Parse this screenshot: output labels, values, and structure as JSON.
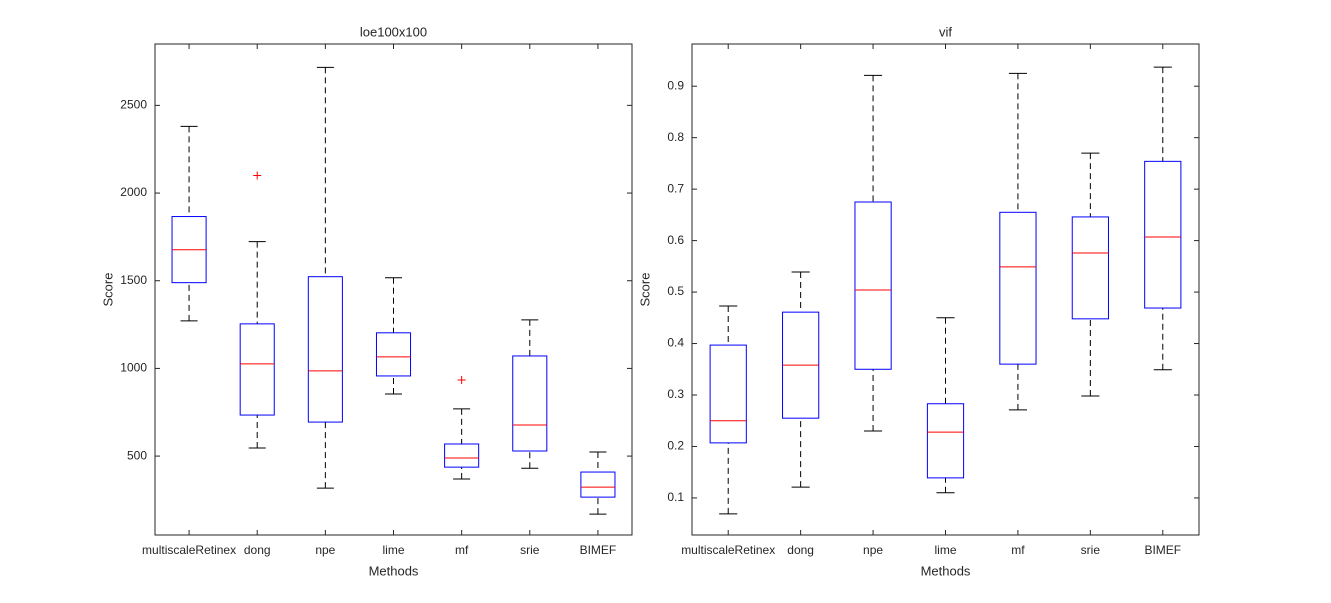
{
  "chart_data": [
    {
      "type": "box",
      "title": "loe100x100",
      "xlabel": "Methods",
      "ylabel": "Score",
      "categories": [
        "multiscaleRetinex",
        "dong",
        "npe",
        "lime",
        "mf",
        "srie",
        "BIMEF"
      ],
      "boxes": [
        {
          "whislo": 1271,
          "q1": 1489,
          "median": 1677,
          "q3": 1866,
          "whishi": 2380
        },
        {
          "whislo": 546,
          "q1": 734,
          "median": 1026,
          "q3": 1254,
          "whishi": 1723,
          "fliers": [
            2100
          ]
        },
        {
          "whislo": 317,
          "q1": 694,
          "median": 986,
          "q3": 1523,
          "whishi": 2717
        },
        {
          "whislo": 854,
          "q1": 957,
          "median": 1066,
          "q3": 1203,
          "whishi": 1517
        },
        {
          "whislo": 369,
          "q1": 437,
          "median": 489,
          "q3": 569,
          "whishi": 769,
          "fliers": [
            934
          ]
        },
        {
          "whislo": 431,
          "q1": 529,
          "median": 677,
          "q3": 1071,
          "whishi": 1277
        },
        {
          "whislo": 169,
          "q1": 266,
          "median": 323,
          "q3": 409,
          "whishi": 523
        }
      ],
      "ylim": [
        50,
        2850
      ],
      "yticks": [
        500,
        1000,
        1500,
        2000,
        2500
      ],
      "box_color": "#0000ff",
      "median_color": "#ff0000",
      "whisker_color": "#000000",
      "flier_color": "#ff0000"
    },
    {
      "type": "box",
      "title": "vif",
      "xlabel": "Methods",
      "ylabel": "Score",
      "categories": [
        "multiscaleRetinex",
        "dong",
        "npe",
        "lime",
        "mf",
        "srie",
        "BIMEF"
      ],
      "boxes": [
        {
          "whislo": 0.069,
          "q1": 0.207,
          "median": 0.25,
          "q3": 0.397,
          "whishi": 0.473
        },
        {
          "whislo": 0.121,
          "q1": 0.255,
          "median": 0.358,
          "q3": 0.461,
          "whishi": 0.539
        },
        {
          "whislo": 0.23,
          "q1": 0.35,
          "median": 0.504,
          "q3": 0.675,
          "whishi": 0.921
        },
        {
          "whislo": 0.11,
          "q1": 0.139,
          "median": 0.228,
          "q3": 0.283,
          "whishi": 0.45
        },
        {
          "whislo": 0.271,
          "q1": 0.36,
          "median": 0.549,
          "q3": 0.655,
          "whishi": 0.925
        },
        {
          "whislo": 0.298,
          "q1": 0.448,
          "median": 0.576,
          "q3": 0.646,
          "whishi": 0.77
        },
        {
          "whislo": 0.349,
          "q1": 0.469,
          "median": 0.607,
          "q3": 0.754,
          "whishi": 0.937
        }
      ],
      "ylim": [
        0.028,
        0.982
      ],
      "yticks": [
        0.1,
        0.2,
        0.3,
        0.4,
        0.5,
        0.6,
        0.7,
        0.8,
        0.9
      ],
      "box_color": "#0000ff",
      "median_color": "#ff0000",
      "whisker_color": "#000000",
      "flier_color": "#ff0000"
    }
  ]
}
